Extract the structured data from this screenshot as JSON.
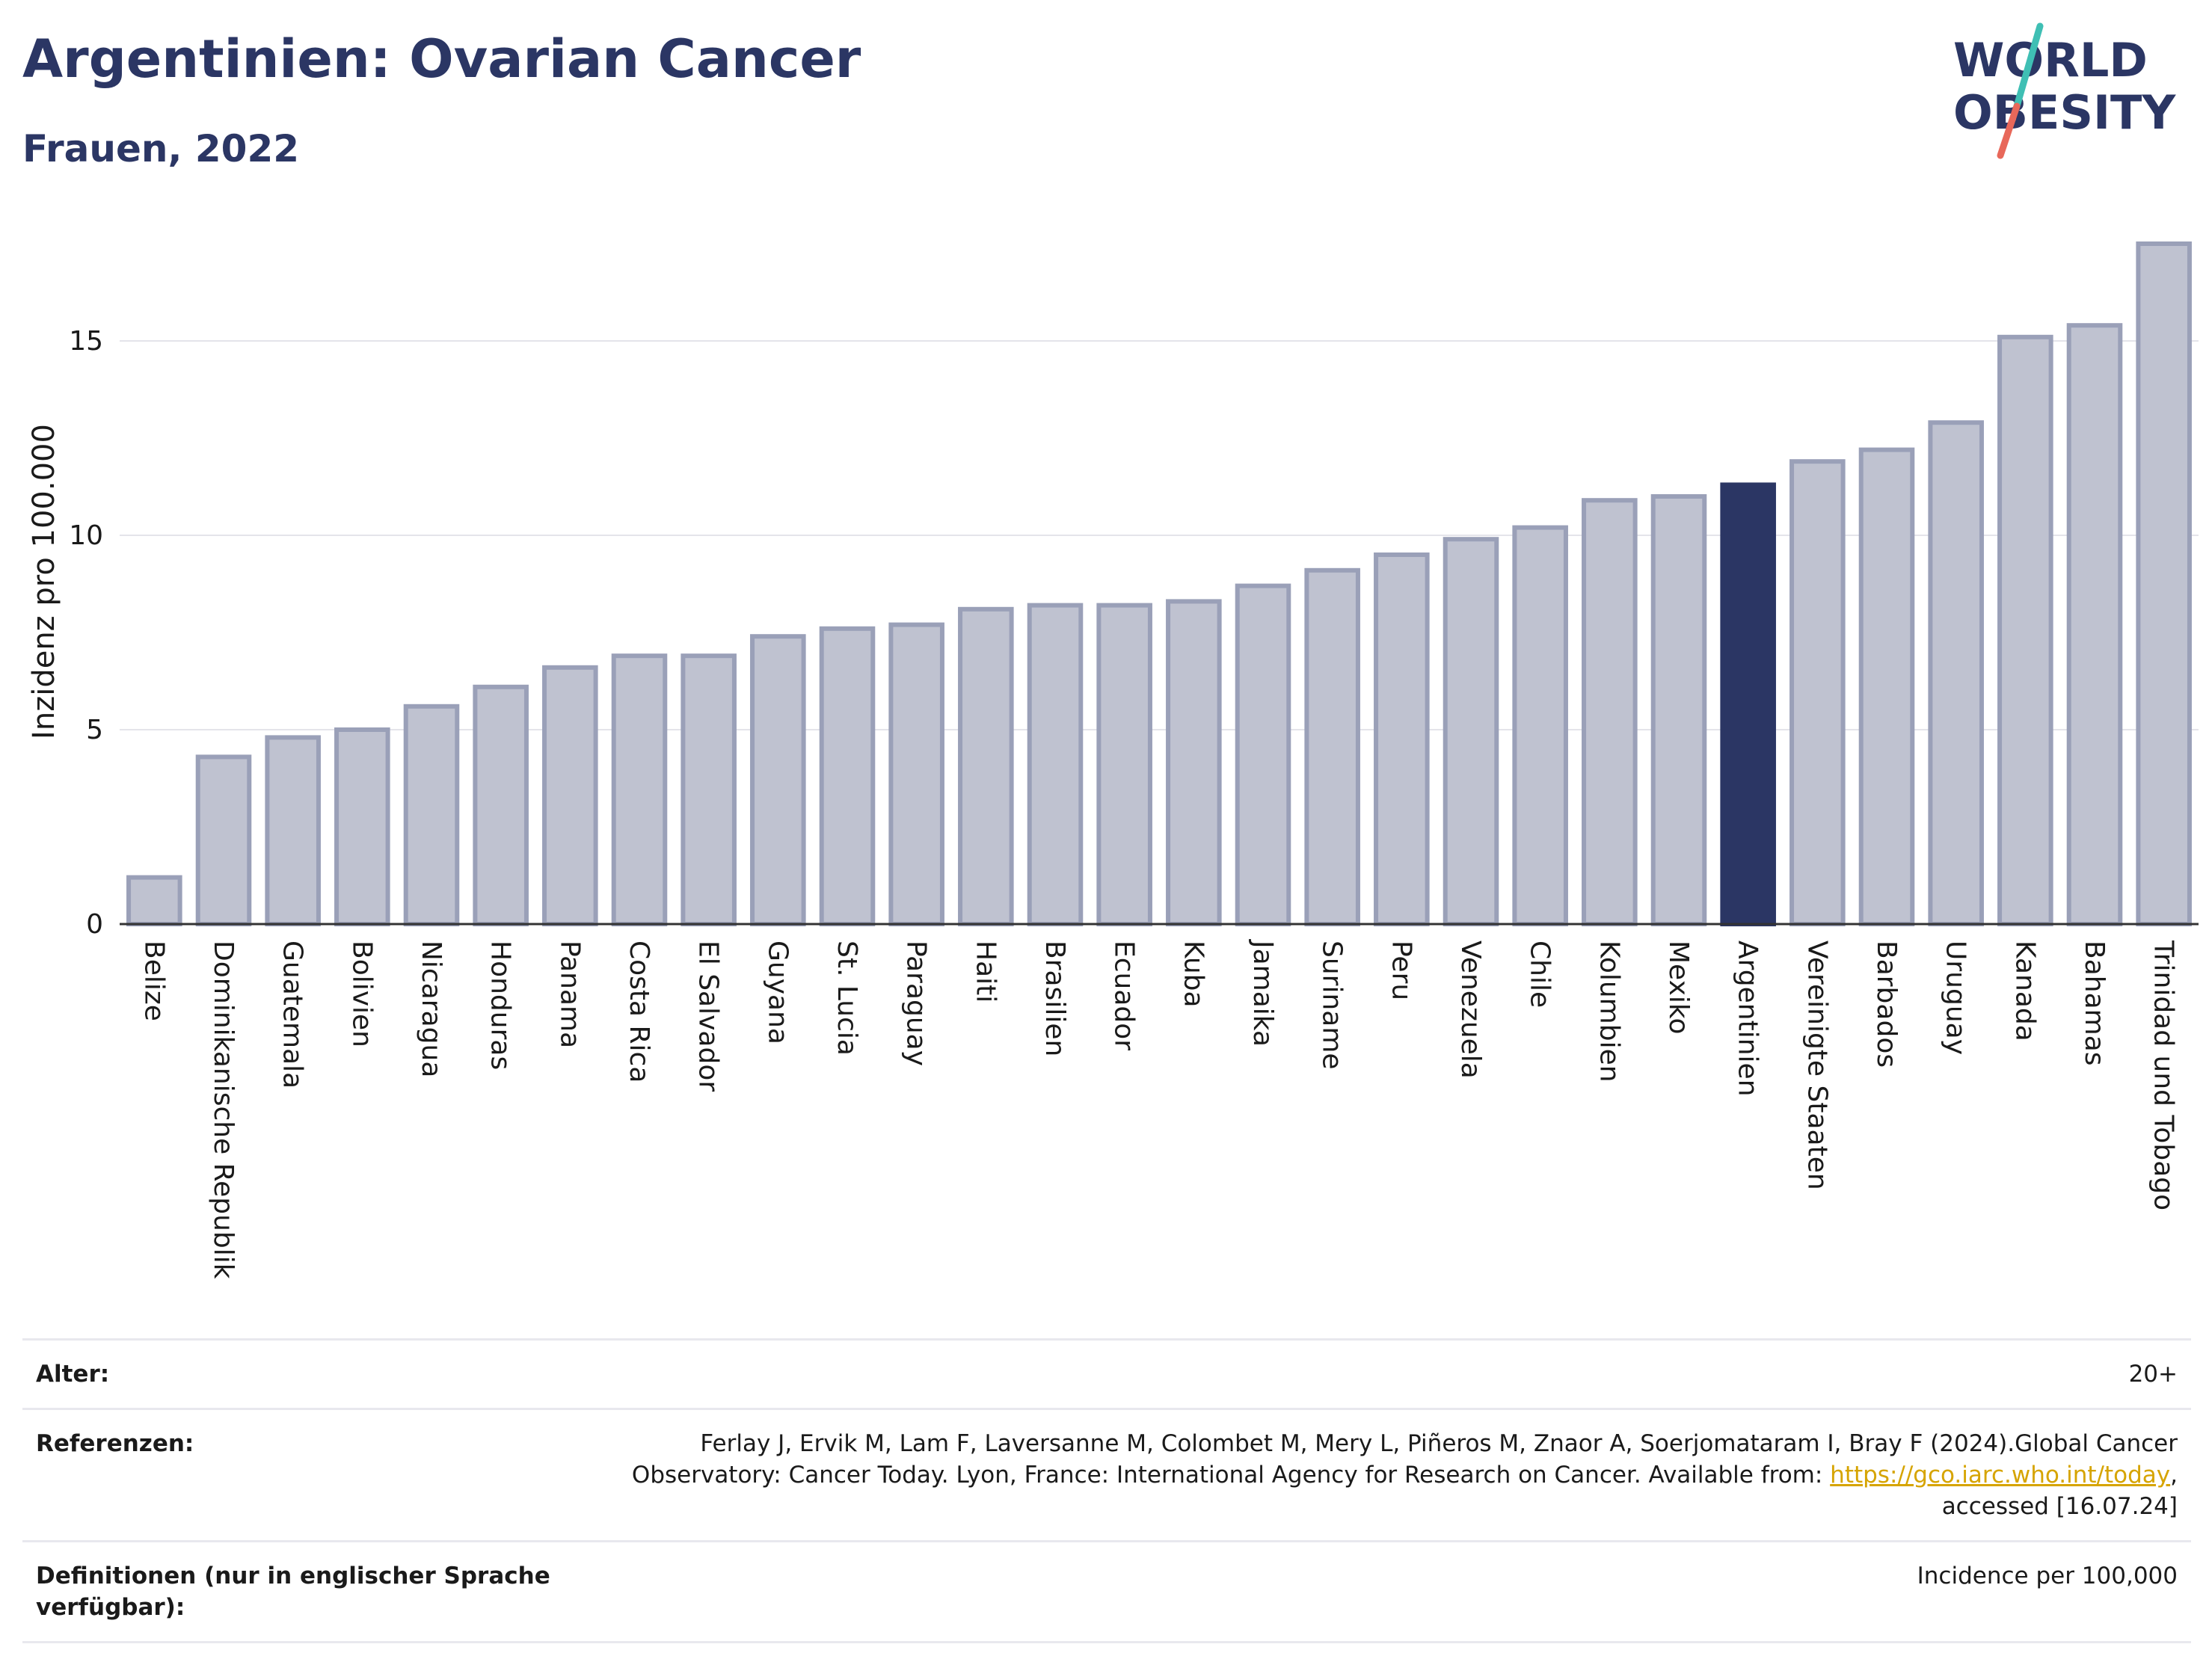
{
  "header": {
    "title": "Argentinien: Ovarian Cancer",
    "subtitle": "Frauen, 2022"
  },
  "logo": {
    "line1": "WORLD",
    "line2": "OBESITY",
    "colors": {
      "text": "#2b3664",
      "slash_top": "#3fbfb4",
      "slash_bottom": "#e8685a"
    }
  },
  "colors": {
    "bar": "#bfc2d0",
    "bar_border": "#9aa0b8",
    "highlight": "#2b3664",
    "grid": "#e4e4ea",
    "axis": "#333333"
  },
  "chart_data": {
    "type": "bar",
    "title": "Argentinien: Ovarian Cancer",
    "subtitle": "Frauen, 2022",
    "xlabel": "",
    "ylabel": "Inzidenz pro 100.000",
    "ylim": [
      0,
      18
    ],
    "yticks": [
      0,
      5,
      10,
      15
    ],
    "grid": true,
    "highlight": "Argentinien",
    "categories": [
      "Belize",
      "Dominikanische Republik",
      "Guatemala",
      "Bolivien",
      "Nicaragua",
      "Honduras",
      "Panama",
      "Costa Rica",
      "El Salvador",
      "Guyana",
      "St. Lucia",
      "Paraguay",
      "Haiti",
      "Brasilien",
      "Ecuador",
      "Kuba",
      "Jamaika",
      "Suriname",
      "Peru",
      "Venezuela",
      "Chile",
      "Kolumbien",
      "Mexiko",
      "Argentinien",
      "Vereinigte Staaten",
      "Barbados",
      "Uruguay",
      "Kanada",
      "Bahamas",
      "Trinidad und Tobago"
    ],
    "values": [
      1.2,
      4.3,
      4.8,
      5.0,
      5.6,
      6.1,
      6.6,
      6.9,
      6.9,
      7.4,
      7.6,
      7.7,
      8.1,
      8.2,
      8.2,
      8.3,
      8.7,
      9.1,
      9.5,
      9.9,
      10.2,
      10.9,
      11.0,
      11.3,
      11.9,
      12.2,
      12.9,
      15.1,
      15.4,
      17.5
    ]
  },
  "meta": {
    "rows": [
      {
        "label": "Alter:",
        "value": "20+"
      },
      {
        "label": "Referenzen:",
        "value_before": "Ferlay J, Ervik M, Lam F, Laversanne M, Colombet M, Mery L, Piñeros M, Znaor A, Soerjomataram I, Bray F (2024).Global Cancer Observatory: Cancer Today. Lyon, France: International Agency for Research on Cancer. Available from: ",
        "link": "https://gco.iarc.who.int/today",
        "value_after": ", accessed [16.07.24]"
      },
      {
        "label": "Definitionen (nur in englischer Sprache verfügbar):",
        "value": "Incidence per 100,000"
      }
    ]
  }
}
